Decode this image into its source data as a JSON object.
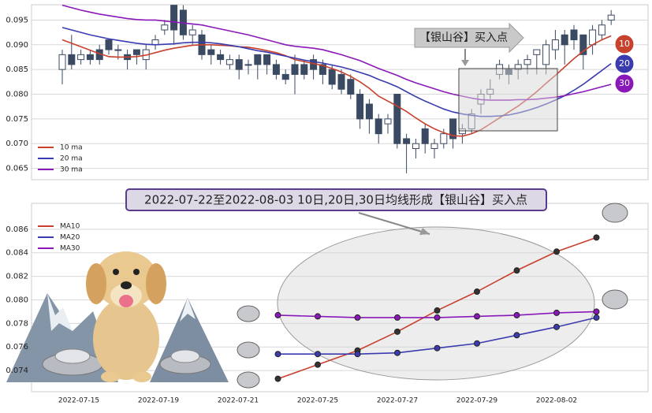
{
  "chart_data": [
    {
      "type": "candlestick",
      "open": [
        0.085,
        0.088,
        0.087,
        0.088,
        0.089,
        0.091,
        0.089,
        0.088,
        0.089,
        0.087,
        0.09,
        0.093,
        0.098,
        0.097,
        0.092,
        0.092,
        0.089,
        0.088,
        0.086,
        0.087,
        0.086,
        0.088,
        0.088,
        0.086,
        0.084,
        0.086,
        0.086,
        0.087,
        0.086,
        0.085,
        0.084,
        0.083,
        0.08,
        0.078,
        0.075,
        0.074,
        0.08,
        0.071,
        0.069,
        0.073,
        0.069,
        0.07,
        0.075,
        0.072,
        0.073,
        0.078,
        0.08,
        0.084,
        0.085,
        0.085,
        0.086,
        0.088,
        0.086,
        0.089,
        0.092,
        0.093,
        0.092,
        0.09,
        0.092,
        0.095
      ],
      "high": [
        0.089,
        0.092,
        0.089,
        0.089,
        0.09,
        0.091,
        0.09,
        0.089,
        0.089,
        0.09,
        0.092,
        0.095,
        0.098,
        0.098,
        0.094,
        0.093,
        0.09,
        0.089,
        0.088,
        0.088,
        0.087,
        0.088,
        0.088,
        0.087,
        0.085,
        0.088,
        0.087,
        0.088,
        0.087,
        0.086,
        0.085,
        0.084,
        0.081,
        0.079,
        0.076,
        0.076,
        0.08,
        0.072,
        0.071,
        0.074,
        0.071,
        0.073,
        0.075,
        0.074,
        0.077,
        0.081,
        0.083,
        0.087,
        0.086,
        0.087,
        0.088,
        0.089,
        0.091,
        0.093,
        0.093,
        0.094,
        0.092,
        0.094,
        0.095,
        0.097
      ],
      "low": [
        0.082,
        0.085,
        0.086,
        0.086,
        0.086,
        0.088,
        0.087,
        0.085,
        0.086,
        0.085,
        0.089,
        0.092,
        0.09,
        0.091,
        0.09,
        0.087,
        0.086,
        0.086,
        0.085,
        0.083,
        0.084,
        0.083,
        0.084,
        0.083,
        0.082,
        0.08,
        0.083,
        0.083,
        0.082,
        0.081,
        0.08,
        0.079,
        0.073,
        0.072,
        0.07,
        0.072,
        0.069,
        0.064,
        0.067,
        0.068,
        0.067,
        0.069,
        0.069,
        0.07,
        0.072,
        0.076,
        0.079,
        0.083,
        0.082,
        0.083,
        0.084,
        0.084,
        0.084,
        0.087,
        0.086,
        0.089,
        0.085,
        0.088,
        0.091,
        0.094
      ],
      "close": [
        0.088,
        0.086,
        0.088,
        0.087,
        0.087,
        0.089,
        0.089,
        0.087,
        0.088,
        0.089,
        0.091,
        0.094,
        0.093,
        0.092,
        0.093,
        0.088,
        0.088,
        0.087,
        0.087,
        0.085,
        0.086,
        0.086,
        0.086,
        0.084,
        0.083,
        0.084,
        0.084,
        0.085,
        0.084,
        0.082,
        0.081,
        0.08,
        0.075,
        0.075,
        0.072,
        0.075,
        0.07,
        0.07,
        0.07,
        0.07,
        0.07,
        0.072,
        0.071,
        0.073,
        0.076,
        0.08,
        0.081,
        0.086,
        0.084,
        0.086,
        0.087,
        0.089,
        0.09,
        0.091,
        0.09,
        0.091,
        0.088,
        0.093,
        0.094,
        0.096
      ],
      "up_color": "#ffffff",
      "down_color": "#3b4a63",
      "series": [
        {
          "name": "10 ma",
          "end_label": "10",
          "color": "#c8412d",
          "values": [
            0.091,
            0.0903,
            0.0896,
            0.0889,
            0.0882,
            0.0876,
            0.0875,
            0.0875,
            0.0876,
            0.0879,
            0.0884,
            0.0889,
            0.0893,
            0.0896,
            0.0899,
            0.09,
            0.09,
            0.0899,
            0.0898,
            0.0896,
            0.0895,
            0.0892,
            0.0888,
            0.0884,
            0.0878,
            0.087,
            0.0866,
            0.0862,
            0.0858,
            0.0852,
            0.0845,
            0.0836,
            0.0825,
            0.0812,
            0.0796,
            0.0786,
            0.0776,
            0.0765,
            0.0752,
            0.074,
            0.073,
            0.0722,
            0.0716,
            0.0715,
            0.072,
            0.0728,
            0.074,
            0.0752,
            0.0764,
            0.0776,
            0.079,
            0.0805,
            0.0822,
            0.0838,
            0.0855,
            0.0872,
            0.0887,
            0.09,
            0.091,
            0.0918
          ]
        },
        {
          "name": "20 ma",
          "end_label": "20",
          "color": "#3b3bb0",
          "values": [
            0.0935,
            0.093,
            0.0925,
            0.092,
            0.0916,
            0.0912,
            0.0909,
            0.0906,
            0.0903,
            0.0901,
            0.09,
            0.0901,
            0.0902,
            0.0904,
            0.0905,
            0.0905,
            0.0904,
            0.0902,
            0.0899,
            0.0896,
            0.0892,
            0.0888,
            0.0885,
            0.0881,
            0.0877,
            0.0873,
            0.0869,
            0.0866,
            0.0863,
            0.0859,
            0.0855,
            0.085,
            0.0844,
            0.0838,
            0.083,
            0.0823,
            0.0815,
            0.0805,
            0.0795,
            0.0786,
            0.0778,
            0.077,
            0.0764,
            0.076,
            0.0757,
            0.0755,
            0.0755,
            0.0756,
            0.0758,
            0.0762,
            0.0767,
            0.0773,
            0.078,
            0.0788,
            0.0797,
            0.0808,
            0.082,
            0.0834,
            0.0848,
            0.0862
          ]
        },
        {
          "name": "30 ma",
          "end_label": "30",
          "color": "#8a18b8",
          "values": [
            0.098,
            0.0975,
            0.097,
            0.0966,
            0.0962,
            0.0959,
            0.0956,
            0.0953,
            0.0951,
            0.095,
            0.095,
            0.0948,
            0.0946,
            0.0944,
            0.0942,
            0.094,
            0.0936,
            0.0932,
            0.0928,
            0.0924,
            0.092,
            0.0915,
            0.091,
            0.0905,
            0.09,
            0.0897,
            0.0895,
            0.0893,
            0.089,
            0.0885,
            0.088,
            0.0874,
            0.0868,
            0.086,
            0.0852,
            0.0845,
            0.0838,
            0.083,
            0.0823,
            0.0817,
            0.0811,
            0.0805,
            0.08,
            0.0796,
            0.0792,
            0.0789,
            0.0788,
            0.0788,
            0.0788,
            0.0789,
            0.0789,
            0.079,
            0.0792,
            0.0794,
            0.0797,
            0.0801,
            0.0805,
            0.081,
            0.0815,
            0.082
          ]
        }
      ],
      "annotation": "【银山谷】买入点",
      "ylim": [
        0.0627,
        0.0981
      ],
      "yticks": [
        0.065,
        {
          "value": 0.07,
          "label": "0.070"
        },
        0.075,
        {
          "value": 0.08,
          "label": "0.080"
        },
        0.085,
        {
          "value": 0.09,
          "label": "0.090"
        },
        0.095
      ],
      "grid": true,
      "legend": "lower left"
    },
    {
      "type": "line",
      "title": "2022-07-22至2022-08-03 10日,20日,30日均线形成【银山谷】买入点",
      "categories": [
        "2022-07-15",
        null,
        "2022-07-19",
        null,
        "2022-07-21",
        null,
        "2022-07-25",
        null,
        "2022-07-27",
        null,
        "2022-07-29",
        null,
        "2022-08-02",
        null
      ],
      "series": [
        {
          "name": "MA10",
          "color": "#c8412d",
          "values": [
            null,
            null,
            null,
            null,
            null,
            0.0733,
            0.0745,
            0.0757,
            0.0773,
            0.0791,
            0.0807,
            0.0825,
            0.0841,
            0.0853
          ]
        },
        {
          "name": "MA20",
          "color": "#3b3bb0",
          "values": [
            null,
            null,
            null,
            null,
            null,
            0.0754,
            0.0754,
            0.0754,
            0.0755,
            0.0759,
            0.0763,
            0.077,
            0.0777,
            0.0785
          ]
        },
        {
          "name": "MA30",
          "color": "#8a18b8",
          "values": [
            null,
            null,
            null,
            null,
            null,
            0.0787,
            0.0786,
            0.0785,
            0.0785,
            0.0785,
            0.0786,
            0.0787,
            0.0789,
            0.079
          ]
        }
      ],
      "ylim": [
        0.0722,
        0.0882
      ],
      "yticks": [
        0.074,
        0.076,
        0.078,
        {
          "value": 0.08,
          "label": "0.080"
        },
        0.082,
        0.084,
        0.086
      ],
      "grid": true,
      "legend": "upper left"
    }
  ]
}
